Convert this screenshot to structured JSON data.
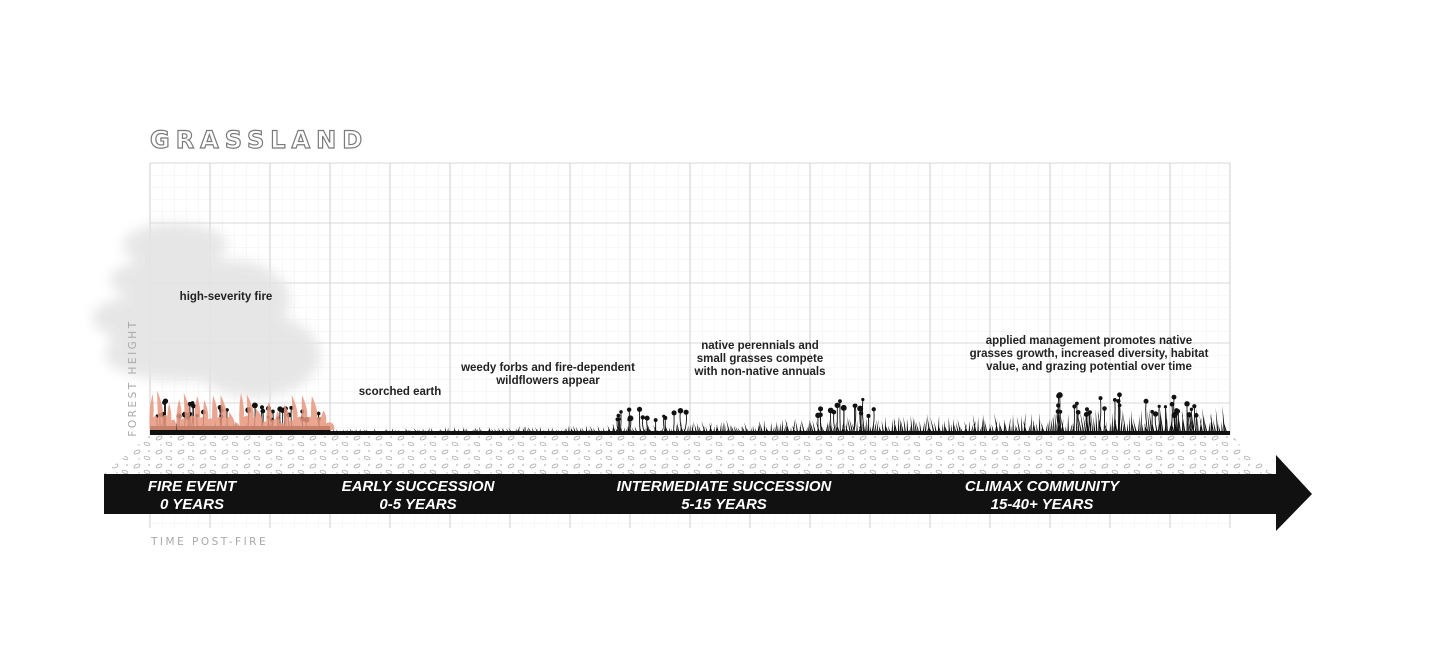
{
  "title": "GRASSLAND",
  "y_axis_label": "FOREST HEIGHT",
  "x_axis_label": "TIME POST-FIRE",
  "annotations": [
    {
      "id": "fire",
      "text": "high-severity fire"
    },
    {
      "id": "scorched",
      "text": "scorched earth"
    },
    {
      "id": "weedy",
      "line1": "weedy forbs and fire-dependent",
      "line2": "wildflowers appear"
    },
    {
      "id": "native",
      "line1": "native perennials and",
      "line2": "small grasses compete",
      "line3": "with non-native annuals"
    },
    {
      "id": "managed",
      "line1": "applied management promotes native",
      "line2": "grasses growth, increased diversity, habitat",
      "line3": "value, and grazing potential over time"
    }
  ],
  "stages": [
    {
      "name": "FIRE EVENT",
      "years": "0 YEARS"
    },
    {
      "name": "EARLY SUCCESSION",
      "years": "0-5 YEARS"
    },
    {
      "name": "INTERMEDIATE SUCCESSION",
      "years": "5-15 YEARS"
    },
    {
      "name": "CLIMAX COMMUNITY",
      "years": "15-40+ YEARS"
    }
  ],
  "colors": {
    "arrow": "#111111",
    "vegetation": "#111111",
    "flames": "#e8967f",
    "smoke": "#e4e4e4",
    "grid_major": "#cfcfcf",
    "grid_minor": "#ececec"
  }
}
